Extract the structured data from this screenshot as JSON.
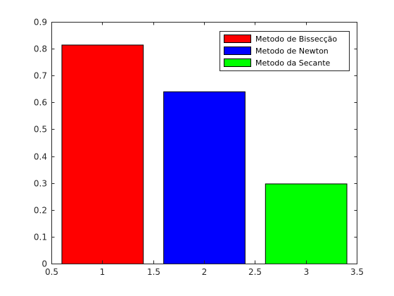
{
  "chart_data": {
    "type": "bar",
    "title": "",
    "xlabel": "",
    "ylabel": "",
    "xlim": [
      0.5,
      3.5
    ],
    "ylim": [
      0,
      0.9
    ],
    "xticks": [
      "0.5",
      "1",
      "1.5",
      "2",
      "2.5",
      "3",
      "3.5"
    ],
    "xtick_values": [
      0.5,
      1,
      1.5,
      2,
      2.5,
      3,
      3.5
    ],
    "yticks": [
      "0",
      "0.1",
      "0.2",
      "0.3",
      "0.4",
      "0.5",
      "0.6",
      "0.7",
      "0.8",
      "0.9"
    ],
    "ytick_values": [
      0,
      0.1,
      0.2,
      0.3,
      0.4,
      0.5,
      0.6,
      0.7,
      0.8,
      0.9
    ],
    "bar_width": 0.8,
    "grid": false,
    "legend_position": "top-right",
    "series": [
      {
        "name": "Metodo de Bissecção",
        "x": 1,
        "value": 0.815,
        "color": "#ff0000"
      },
      {
        "name": "Metodo de Newton",
        "x": 2,
        "value": 0.641,
        "color": "#0000ff"
      },
      {
        "name": "Metodo da Secante",
        "x": 3,
        "value": 0.298,
        "color": "#00ff00"
      }
    ]
  }
}
